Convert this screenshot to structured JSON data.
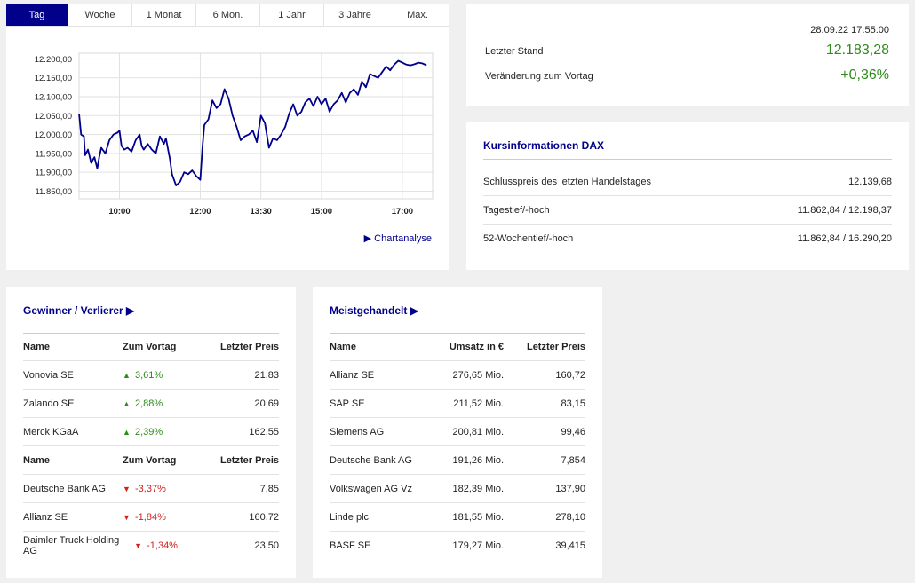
{
  "tabs": [
    "Tag",
    "Woche",
    "1 Monat",
    "6 Mon.",
    "1 Jahr",
    "3 Jahre",
    "Max."
  ],
  "active_tab": "Tag",
  "chart_link": "▶ Chartanalyse",
  "chart_data": {
    "type": "line",
    "title": "",
    "xlabel": "",
    "ylabel": "",
    "x_tick_labels": [
      "10:00",
      "12:00",
      "13:30",
      "15:00",
      "17:00"
    ],
    "x_tick_hours": [
      10,
      12,
      13.5,
      15,
      17
    ],
    "y_tick_labels": [
      "12.200,00",
      "12.150,00",
      "12.100,00",
      "12.050,00",
      "12.000,00",
      "11.950,00",
      "11.900,00",
      "11.850,00"
    ],
    "y_ticks": [
      12200,
      12150,
      12100,
      12050,
      12000,
      11950,
      11900,
      11850
    ],
    "xlim": [
      9.0,
      17.75
    ],
    "ylim": [
      11830,
      12215
    ],
    "grid": true,
    "color": "#00008b",
    "series": [
      {
        "x": [
          9.0,
          9.05,
          9.12,
          9.15,
          9.22,
          9.3,
          9.38,
          9.45,
          9.5,
          9.55,
          9.65,
          9.75,
          9.85,
          9.95,
          10.0,
          10.05,
          10.12,
          10.2,
          10.3,
          10.4,
          10.5,
          10.55,
          10.6,
          10.7,
          10.8,
          10.9,
          11.0,
          11.05,
          11.1,
          11.15,
          11.25,
          11.3,
          11.35,
          11.4,
          11.5,
          11.6,
          11.7,
          11.8,
          11.9,
          11.95,
          12.0,
          12.05,
          12.1,
          12.2,
          12.3,
          12.4,
          12.5,
          12.6,
          12.7,
          12.8,
          12.9,
          13.0,
          13.1,
          13.2,
          13.3,
          13.4,
          13.5,
          13.6,
          13.7,
          13.8,
          13.9,
          14.0,
          14.1,
          14.2,
          14.3,
          14.4,
          14.5,
          14.6,
          14.7,
          14.8,
          14.9,
          15.0,
          15.1,
          15.2,
          15.3,
          15.4,
          15.5,
          15.6,
          15.7,
          15.8,
          15.9,
          16.0,
          16.1,
          16.2,
          16.3,
          16.4,
          16.5,
          16.6,
          16.7,
          16.8,
          16.9,
          17.0,
          17.1,
          17.2,
          17.3,
          17.4,
          17.5,
          17.6
        ],
        "y": [
          12055,
          12000,
          11995,
          11945,
          11960,
          11925,
          11940,
          11910,
          11940,
          11965,
          11950,
          11985,
          12000,
          12005,
          12010,
          11970,
          11960,
          11965,
          11955,
          11985,
          12000,
          11970,
          11960,
          11975,
          11960,
          11950,
          11995,
          11985,
          11975,
          11990,
          11935,
          11895,
          11880,
          11865,
          11875,
          11900,
          11895,
          11905,
          11890,
          11885,
          11880,
          11960,
          12025,
          12040,
          12090,
          12070,
          12080,
          12120,
          12095,
          12050,
          12020,
          11985,
          11995,
          12000,
          12010,
          11980,
          12050,
          12030,
          11965,
          11990,
          11985,
          12000,
          12020,
          12055,
          12080,
          12050,
          12060,
          12085,
          12095,
          12075,
          12100,
          12080,
          12095,
          12060,
          12080,
          12090,
          12110,
          12085,
          12110,
          12120,
          12105,
          12140,
          12125,
          12160,
          12155,
          12150,
          12165,
          12180,
          12170,
          12185,
          12195,
          12190,
          12185,
          12183,
          12186,
          12190,
          12188,
          12183
        ]
      }
    ]
  },
  "quote": {
    "timestamp": "28.09.22 17:55:00",
    "last_label": "Letzter Stand",
    "last_value": "12.183,28",
    "change_label": "Veränderung zum Vortag",
    "change_value": "+0,36%"
  },
  "info": {
    "title": "Kursinformationen DAX",
    "rows": [
      {
        "label": "Schlusspreis des letzten Handelstages",
        "value": "12.139,68"
      },
      {
        "label": "Tagestief/-hoch",
        "value": "11.862,84 / 12.198,37"
      },
      {
        "label": "52-Wochentief/-hoch",
        "value": "11.862,84 / 16.290,20"
      }
    ]
  },
  "gainers": {
    "title": "Gewinner / Verlierer ▶",
    "head": [
      "Name",
      "Zum Vortag",
      "Letzter Preis"
    ],
    "up_rows": [
      {
        "name": "Vonovia SE",
        "change": "3,61%",
        "price": "21,83"
      },
      {
        "name": "Zalando SE",
        "change": "2,88%",
        "price": "20,69"
      },
      {
        "name": "Merck KGaA",
        "change": "2,39%",
        "price": "162,55"
      }
    ],
    "down_rows": [
      {
        "name": "Deutsche Bank AG",
        "change": "-3,37%",
        "price": "7,85"
      },
      {
        "name": "Allianz SE",
        "change": "-1,84%",
        "price": "160,72"
      },
      {
        "name": "Daimler Truck Holding AG",
        "change": "-1,34%",
        "price": "23,50"
      }
    ],
    "arrow_up": "▲",
    "arrow_down": "▼"
  },
  "traded": {
    "title": "Meistgehandelt ▶",
    "head": [
      "Name",
      "Umsatz in €",
      "Letzter Preis"
    ],
    "rows": [
      {
        "name": "Allianz SE",
        "volume": "276,65 Mio.",
        "price": "160,72"
      },
      {
        "name": "SAP SE",
        "volume": "211,52 Mio.",
        "price": "83,15"
      },
      {
        "name": "Siemens AG",
        "volume": "200,81 Mio.",
        "price": "99,46"
      },
      {
        "name": "Deutsche Bank AG",
        "volume": "191,26 Mio.",
        "price": "7,854"
      },
      {
        "name": "Volkswagen AG Vz",
        "volume": "182,39 Mio.",
        "price": "137,90"
      },
      {
        "name": "Linde plc",
        "volume": "181,55 Mio.",
        "price": "278,10"
      },
      {
        "name": "BASF SE",
        "volume": "179,27 Mio.",
        "price": "39,415"
      }
    ]
  }
}
